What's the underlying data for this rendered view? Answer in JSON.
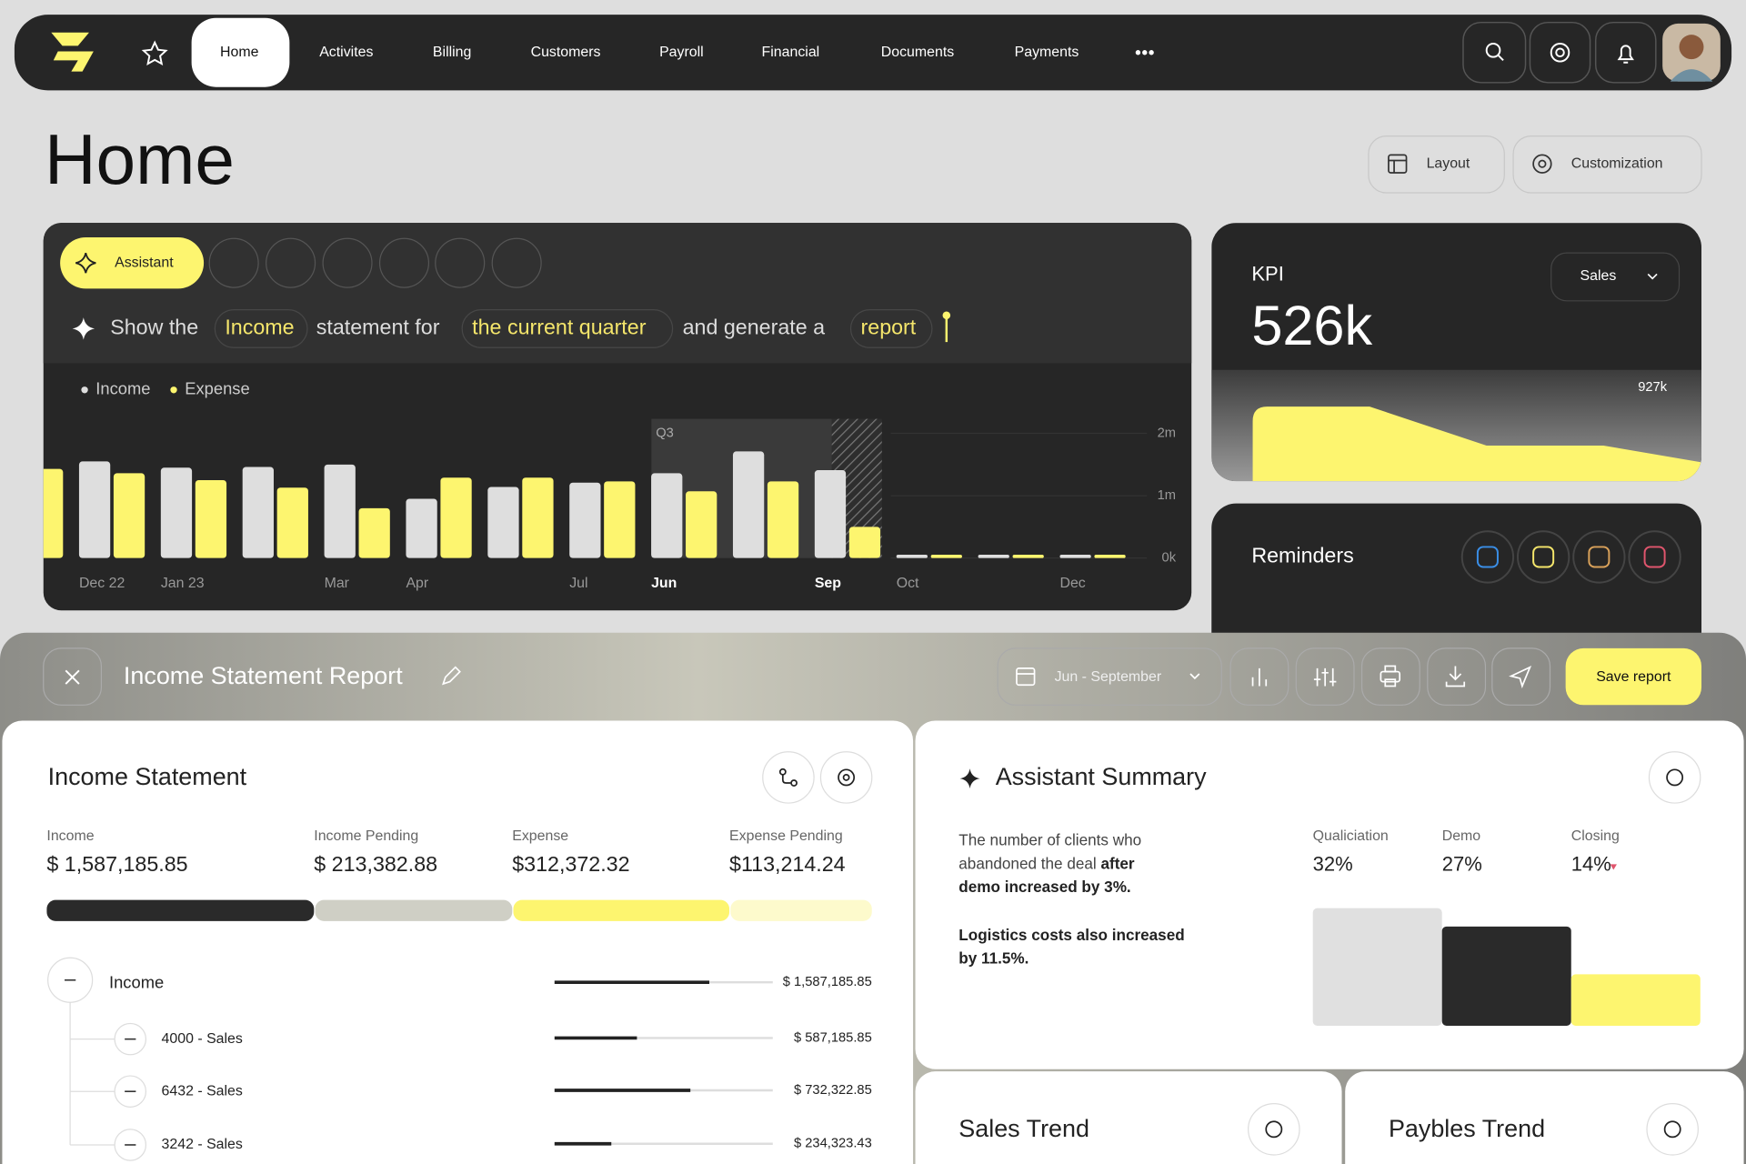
{
  "nav": {
    "items": [
      "Home",
      "Activites",
      "Billing",
      "Customers",
      "Payroll",
      "Financial",
      "Documents",
      "Payments"
    ]
  },
  "page_title": "Home",
  "actions": [
    "Layout",
    "Customization"
  ],
  "assistant": {
    "button": "Assistant",
    "prompt": [
      {
        "text": "Show the"
      },
      {
        "text": "Income",
        "chip": true
      },
      {
        "text": "statement for"
      },
      {
        "text": "the current quarter",
        "chip": true
      },
      {
        "text": "and generate a"
      },
      {
        "text": "report",
        "chip": true
      }
    ]
  },
  "chart_data": {
    "type": "bar",
    "categories": [
      null,
      "Dec 22",
      "Jan 23",
      null,
      "Mar",
      "Apr",
      null,
      "Jul",
      "Jun",
      null,
      "Sep",
      "Oct",
      null,
      "Dec"
    ],
    "series": [
      {
        "name": "Income",
        "color": "#dedede",
        "values": [
          null,
          1.55,
          1.45,
          1.46,
          1.5,
          0.95,
          1.14,
          1.21,
          1.36,
          1.71,
          1.41,
          0,
          0,
          0
        ]
      },
      {
        "name": "Expense",
        "color": "#fdf56f",
        "values": [
          1.43,
          1.36,
          1.25,
          1.13,
          0.8,
          1.29,
          1.29,
          1.23,
          1.07,
          1.23,
          0.5,
          0,
          0,
          0
        ]
      }
    ],
    "ylim": [
      0,
      2
    ],
    "yticks": [
      {
        "value": 0,
        "label": "0k"
      },
      {
        "value": 1,
        "label": "1m"
      },
      {
        "value": 2,
        "label": "2m"
      }
    ],
    "annotation": "Q3"
  },
  "kpi": {
    "title": "KPI",
    "value": "526k",
    "selector": "Sales",
    "peak_label": "927k"
  },
  "reminders": {
    "title": "Reminders"
  },
  "report": {
    "title": "Income Statement Report",
    "period": "Jun - September",
    "save": "Save report"
  },
  "income_statement": {
    "title": "Income Statement",
    "summary": [
      {
        "label": "Income",
        "value": "$ 1,587,185.85"
      },
      {
        "label": "Income Pending",
        "value": "$ 213,382.88"
      },
      {
        "label": "Expense",
        "value": "$312,372.32"
      },
      {
        "label": "Expense Pending",
        "value": "$113,214.24"
      }
    ],
    "rows": [
      {
        "label": "Income",
        "amount": "$ 1,587,185.85"
      },
      {
        "label": "4000 - Sales",
        "amount": "$ 587,185.85"
      },
      {
        "label": "6432 - Sales",
        "amount": "$ 732,322.85"
      },
      {
        "label": "3242 - Sales",
        "amount": "$ 234,323.43"
      }
    ]
  },
  "assistant_summary": {
    "title": "Assistant Summary",
    "lines": [
      [
        {
          "text": "The number of clients who"
        }
      ],
      [
        {
          "text": "abandoned the deal "
        },
        {
          "text": "after",
          "bold": true
        }
      ],
      [
        {
          "text": "demo increased by 3%.",
          "bold": true
        }
      ],
      [
        {
          "text": "Logistics costs also increased",
          "bold": true
        }
      ],
      [
        {
          "text": "by 11.5%.",
          "bold": true
        }
      ]
    ],
    "metrics": {
      "categories": [
        "Qualiciation",
        "Demo",
        "Closing"
      ],
      "values": [
        32,
        27,
        14
      ],
      "value_labels": [
        "32%",
        "27%",
        "14%"
      ],
      "colors": [
        "#e0e0e0",
        "#2a2a2a",
        "#fdf56f"
      ]
    }
  },
  "cards": [
    "Sales Trend",
    "Paybles Trend"
  ]
}
